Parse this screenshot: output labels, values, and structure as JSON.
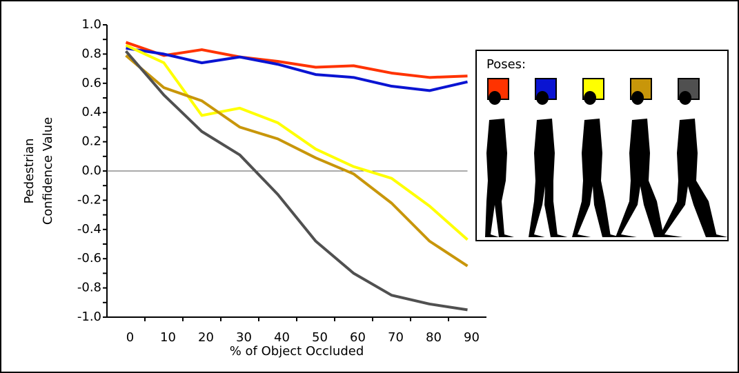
{
  "chart_data": {
    "type": "line",
    "x_label": "% of Object Occluded",
    "y_label": [
      "Pedestrian",
      "Confidence Value"
    ],
    "legend_title": "Poses:",
    "categories": [
      "0",
      "10",
      "20",
      "30",
      "40",
      "50",
      "60",
      "70",
      "80",
      "90"
    ],
    "series": [
      {
        "color": "#ff3300",
        "values": [
          0.88,
          0.79,
          0.83,
          0.78,
          0.75,
          0.71,
          0.72,
          0.67,
          0.64,
          0.65
        ]
      },
      {
        "color": "#0a14d2",
        "values": [
          0.84,
          0.8,
          0.74,
          0.78,
          0.73,
          0.66,
          0.64,
          0.58,
          0.55,
          0.61
        ]
      },
      {
        "color": "#ffff00",
        "values": [
          0.86,
          0.74,
          0.38,
          0.43,
          0.33,
          0.15,
          0.03,
          -0.05,
          -0.24,
          -0.47
        ]
      },
      {
        "color": "#c8960a",
        "values": [
          0.79,
          0.57,
          0.48,
          0.3,
          0.22,
          0.09,
          -0.02,
          -0.22,
          -0.48,
          -0.65
        ]
      },
      {
        "color": "#505050",
        "values": [
          0.82,
          0.52,
          0.27,
          0.11,
          -0.16,
          -0.48,
          -0.7,
          -0.85,
          -0.91,
          -0.95
        ]
      }
    ],
    "ylim": [
      -1.0,
      1.0
    ],
    "yticks": [
      {
        "value": -1.0,
        "label": "-1.0"
      },
      {
        "value": -0.8,
        "label": "-0.8"
      },
      {
        "value": -0.6,
        "label": "-0.6"
      },
      {
        "value": -0.4,
        "label": "-0.4"
      },
      {
        "value": -0.2,
        "label": "-0.2"
      },
      {
        "value": 0.0,
        "label": "0.0"
      },
      {
        "value": 0.2,
        "label": "0.2"
      },
      {
        "value": 0.4,
        "label": "0.4"
      },
      {
        "value": 0.6,
        "label": "0.6"
      },
      {
        "value": 0.8,
        "label": "0.8"
      },
      {
        "value": 1.0,
        "label": "1.0"
      }
    ],
    "zero_line": true
  }
}
